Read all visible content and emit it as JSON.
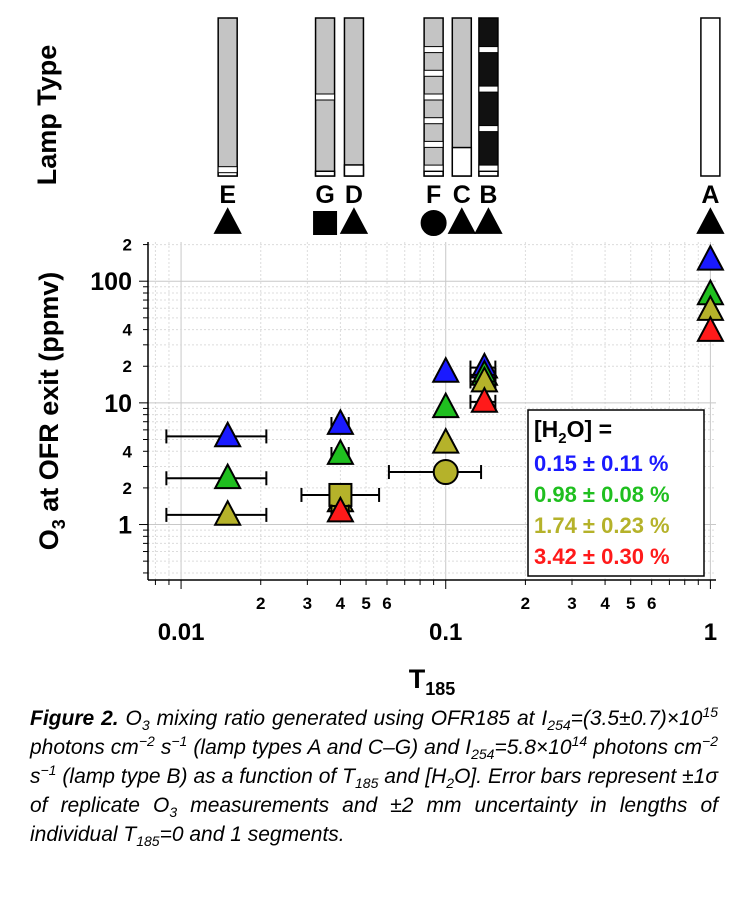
{
  "chart_data": {
    "type": "scatter",
    "xlabel": "T",
    "xlabel_sub": "185",
    "ylabel": "O",
    "ylabel_sub": "3",
    "ylabel_rest": " at OFR exit (ppmv)",
    "xscale": "log",
    "yscale": "log",
    "xlim": [
      0.0075,
      1.05
    ],
    "ylim": [
      0.35,
      210
    ],
    "grid": true,
    "x_major_ticks": [
      {
        "value": 0.01,
        "label": "0.01"
      },
      {
        "value": 0.1,
        "label": "0.1"
      },
      {
        "value": 1,
        "label": "1"
      }
    ],
    "x_minor_ticks": [
      {
        "value": 0.02,
        "label": "2"
      },
      {
        "value": 0.03,
        "label": "3"
      },
      {
        "value": 0.04,
        "label": "4"
      },
      {
        "value": 0.05,
        "label": "5"
      },
      {
        "value": 0.06,
        "label": "6"
      },
      {
        "value": 0.2,
        "label": "2"
      },
      {
        "value": 0.3,
        "label": "3"
      },
      {
        "value": 0.4,
        "label": "4"
      },
      {
        "value": 0.5,
        "label": "5"
      },
      {
        "value": 0.6,
        "label": "6"
      }
    ],
    "y_major_ticks": [
      {
        "value": 1,
        "label": "1"
      },
      {
        "value": 10,
        "label": "10"
      },
      {
        "value": 100,
        "label": "100"
      }
    ],
    "y_minor_ticks": [
      {
        "value": 2,
        "label": "2"
      },
      {
        "value": 4,
        "label": "4"
      },
      {
        "value": 20,
        "label": "2"
      },
      {
        "value": 40,
        "label": "4"
      },
      {
        "value": 200,
        "label": "2"
      }
    ],
    "legend": {
      "title": "[H2O] =",
      "title_main": "[H",
      "title_sub": "2",
      "title_rest": "O] =",
      "placement": "lower-right",
      "entries": [
        {
          "label": "0.15 ± 0.11 %",
          "color": "#1a1aff"
        },
        {
          "label": "0.98 ± 0.08 %",
          "color": "#1fbf1f"
        },
        {
          "label": "1.74 ± 0.23 %",
          "color": "#b5b22a"
        },
        {
          "label": "3.42 ± 0.30 %",
          "color": "#ff1a1a"
        }
      ]
    },
    "series": [
      {
        "h2o_index": 0,
        "points": [
          {
            "x": 0.015,
            "y": 5.3,
            "marker": "triangle",
            "xerr": [
              0.0088,
              0.021
            ]
          },
          {
            "x": 0.04,
            "y": 6.7,
            "marker": "triangle",
            "xerr": [
              0.037,
              0.043
            ]
          },
          {
            "x": 0.1,
            "y": 18,
            "marker": "triangle"
          },
          {
            "x": 0.14,
            "y": 19.5,
            "marker": "triangle",
            "xerr": [
              0.124,
              0.154
            ]
          },
          {
            "x": 1,
            "y": 150,
            "marker": "triangle"
          }
        ]
      },
      {
        "h2o_index": 1,
        "points": [
          {
            "x": 0.015,
            "y": 2.4,
            "marker": "triangle",
            "xerr": [
              0.0088,
              0.021
            ]
          },
          {
            "x": 0.04,
            "y": 3.8,
            "marker": "triangle",
            "xerr": [
              0.037,
              0.043
            ]
          },
          {
            "x": 0.1,
            "y": 9.2,
            "marker": "triangle"
          },
          {
            "x": 0.14,
            "y": 17,
            "marker": "triangle",
            "xerr": [
              0.124,
              0.154
            ]
          },
          {
            "x": 1,
            "y": 78,
            "marker": "triangle"
          }
        ]
      },
      {
        "h2o_index": 2,
        "points": [
          {
            "x": 0.015,
            "y": 1.2,
            "marker": "triangle",
            "xerr": [
              0.0088,
              0.021
            ]
          },
          {
            "x": 0.04,
            "y": 1.55,
            "marker": "triangle",
            "xerr": [
              0.037,
              0.043
            ]
          },
          {
            "x": 0.04,
            "y": 1.75,
            "marker": "square",
            "xerr": [
              0.0285,
              0.056
            ]
          },
          {
            "x": 0.1,
            "y": 4.7,
            "marker": "triangle"
          },
          {
            "x": 0.1,
            "y": 2.7,
            "marker": "circle",
            "xerr": [
              0.061,
              0.136
            ]
          },
          {
            "x": 0.14,
            "y": 15,
            "marker": "triangle",
            "xerr": [
              0.124,
              0.154
            ]
          },
          {
            "x": 1,
            "y": 58,
            "marker": "triangle"
          }
        ]
      },
      {
        "h2o_index": 3,
        "points": [
          {
            "x": 0.04,
            "y": 1.28,
            "marker": "triangle",
            "xerr": [
              0.037,
              0.043
            ]
          },
          {
            "x": 0.14,
            "y": 10.2,
            "marker": "triangle",
            "xerr": [
              0.124,
              0.154
            ]
          },
          {
            "x": 1,
            "y": 39,
            "marker": "triangle"
          }
        ]
      }
    ]
  },
  "lamp_panel": {
    "ylabel": "Lamp Type",
    "lamps": [
      {
        "letter": "E",
        "x": 0.015,
        "marker": "triangle",
        "fill": "#c4c4c4",
        "white_bottom": 0.03,
        "bands": [
          0.96
        ]
      },
      {
        "letter": "G",
        "x": 0.035,
        "marker": "square",
        "fill": "#c4c4c4",
        "white_bottom": 0.03,
        "bands": [
          0.5
        ]
      },
      {
        "letter": "D",
        "x": 0.045,
        "marker": "triangle",
        "fill": "#c4c4c4",
        "white_bottom": 0.07,
        "bands": []
      },
      {
        "letter": "F",
        "x": 0.09,
        "marker": "circle",
        "fill": "#c4c4c4",
        "white_bottom": 0.03,
        "bands": [
          0.2,
          0.35,
          0.5,
          0.65,
          0.8,
          0.95
        ]
      },
      {
        "letter": "C",
        "x": 0.115,
        "marker": "triangle",
        "fill": "#c4c4c4",
        "white_bottom": 0.18,
        "bands": []
      },
      {
        "letter": "B",
        "x": 0.145,
        "marker": "triangle",
        "fill": "#111111",
        "white_bottom": 0.03,
        "bands": [
          0.2,
          0.45,
          0.7,
          0.95
        ]
      },
      {
        "letter": "A",
        "x": 1,
        "marker": "triangle",
        "fill": "#ffffff",
        "white_bottom": 0,
        "bands": []
      }
    ]
  },
  "caption": {
    "label": "Figure 2.",
    "parts": [
      {
        "t": " O"
      },
      {
        "sub": "3"
      },
      {
        "t": " mixing ratio generated using OFR185 at I"
      },
      {
        "sub": "254"
      },
      {
        "t": "=(3.5±0.7)×10"
      },
      {
        "sup": "15"
      },
      {
        "t": " photons cm"
      },
      {
        "sup": "−2"
      },
      {
        "t": " s"
      },
      {
        "sup": "−1"
      },
      {
        "t": " (lamp types A and C–G) and I"
      },
      {
        "sub": "254"
      },
      {
        "t": "=5.8×10"
      },
      {
        "sup": "14"
      },
      {
        "t": " photons cm"
      },
      {
        "sup": "−2"
      },
      {
        "t": " s"
      },
      {
        "sup": "−1"
      },
      {
        "t": " (lamp type B) as a function of T"
      },
      {
        "sub": "185"
      },
      {
        "t": " and [H"
      },
      {
        "sub": "2"
      },
      {
        "t": "O]. Error bars represent ±1σ of replicate O"
      },
      {
        "sub": "3"
      },
      {
        "t": " measurements and ±2 mm uncertainty in lengths of individual T"
      },
      {
        "sub": "185"
      },
      {
        "t": "=0 and 1 segments."
      }
    ]
  }
}
